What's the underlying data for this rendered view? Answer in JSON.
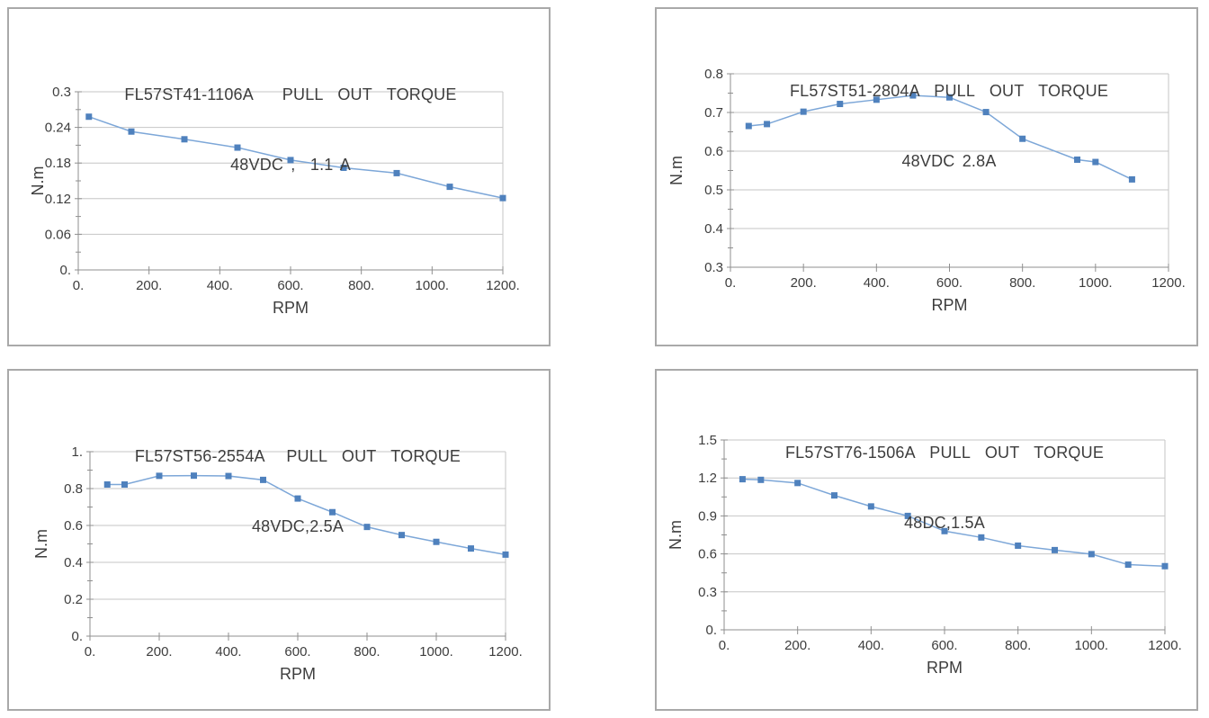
{
  "page": {
    "background": "#ffffff"
  },
  "style": {
    "panel_border_color": "#a9a9a9",
    "line_color": "#7da7d8",
    "marker_color": "#4f81bd",
    "grid_color": "#c6c6c6",
    "axis_color": "#8f8f8f",
    "text_color": "#3d3d3d"
  },
  "chart_data": [
    {
      "type": "line",
      "title": "FL57ST41-1106A    PULL  OUT  TORQUE",
      "subtitle": "48VDC ,  1.1 A",
      "xlabel": "RPM",
      "ylabel": "N.m",
      "xlim": [
        0,
        1200
      ],
      "ylim": [
        0,
        0.3
      ],
      "grid": "horizontal",
      "legend": "none",
      "x_ticks": [
        {
          "label": "0.",
          "v": 0
        },
        {
          "label": "200.",
          "v": 200
        },
        {
          "label": "400.",
          "v": 400
        },
        {
          "label": "600.",
          "v": 600
        },
        {
          "label": "800.",
          "v": 800
        },
        {
          "label": "1000.",
          "v": 1000
        },
        {
          "label": "1200.",
          "v": 1200
        }
      ],
      "y_ticks": [
        {
          "label": "0.",
          "v": 0
        },
        {
          "label": "0.06",
          "v": 0.06
        },
        {
          "label": "0.12",
          "v": 0.12
        },
        {
          "label": "0.18",
          "v": 0.18
        },
        {
          "label": "0.24",
          "v": 0.24
        },
        {
          "label": "0.3",
          "v": 0.3
        }
      ],
      "y_minor_step": 0.03,
      "series": [
        {
          "name": "pull-out torque",
          "x": [
            30,
            150,
            300,
            450,
            600,
            750,
            900,
            1050,
            1200
          ],
          "y": [
            0.258,
            0.233,
            0.22,
            0.206,
            0.185,
            0.172,
            0.163,
            0.14,
            0.121
          ]
        }
      ]
    },
    {
      "type": "line",
      "title": "FL57ST51-2804A  PULL  OUT  TORQUE",
      "subtitle": "48VDC 2.8A",
      "xlabel": "RPM",
      "ylabel": "N.m",
      "xlim": [
        0,
        1200
      ],
      "ylim": [
        0.3,
        0.8
      ],
      "grid": "horizontal",
      "legend": "none",
      "x_ticks": [
        {
          "label": "0.",
          "v": 0
        },
        {
          "label": "200.",
          "v": 200
        },
        {
          "label": "400.",
          "v": 400
        },
        {
          "label": "600.",
          "v": 600
        },
        {
          "label": "800.",
          "v": 800
        },
        {
          "label": "1000.",
          "v": 1000
        },
        {
          "label": "1200.",
          "v": 1200
        }
      ],
      "y_ticks": [
        {
          "label": "0.3",
          "v": 0.3
        },
        {
          "label": "0.4",
          "v": 0.4
        },
        {
          "label": "0.5",
          "v": 0.5
        },
        {
          "label": "0.6",
          "v": 0.6
        },
        {
          "label": "0.7",
          "v": 0.7
        },
        {
          "label": "0.8",
          "v": 0.8
        }
      ],
      "y_minor_step": 0.05,
      "series": [
        {
          "name": "pull-out torque",
          "x": [
            50,
            100,
            200,
            300,
            400,
            500,
            600,
            700,
            800,
            950,
            1000,
            1100
          ],
          "y": [
            0.665,
            0.67,
            0.702,
            0.722,
            0.733,
            0.744,
            0.739,
            0.701,
            0.632,
            0.578,
            0.572,
            0.527
          ]
        }
      ]
    },
    {
      "type": "line",
      "title": "FL57ST56-2554A   PULL  OUT  TORQUE",
      "subtitle": "48VDC,2.5A",
      "xlabel": "RPM",
      "ylabel": "N.m",
      "xlim": [
        0,
        1200
      ],
      "ylim": [
        0,
        1
      ],
      "grid": "horizontal",
      "legend": "none",
      "x_ticks": [
        {
          "label": "0.",
          "v": 0
        },
        {
          "label": "200.",
          "v": 200
        },
        {
          "label": "400.",
          "v": 400
        },
        {
          "label": "600.",
          "v": 600
        },
        {
          "label": "800.",
          "v": 800
        },
        {
          "label": "1000.",
          "v": 1000
        },
        {
          "label": "1200.",
          "v": 1200
        }
      ],
      "y_ticks": [
        {
          "label": "0.",
          "v": 0
        },
        {
          "label": "0.2",
          "v": 0.2
        },
        {
          "label": "0.4",
          "v": 0.4
        },
        {
          "label": "0.6",
          "v": 0.6
        },
        {
          "label": "0.8",
          "v": 0.8
        },
        {
          "label": "1.",
          "v": 1
        }
      ],
      "y_minor_step": 0.1,
      "series": [
        {
          "name": "pull-out torque",
          "x": [
            50,
            100,
            200,
            300,
            400,
            500,
            600,
            700,
            800,
            900,
            1000,
            1100,
            1200
          ],
          "y": [
            0.822,
            0.822,
            0.869,
            0.87,
            0.868,
            0.847,
            0.746,
            0.672,
            0.592,
            0.548,
            0.511,
            0.475,
            0.442
          ]
        }
      ]
    },
    {
      "type": "line",
      "title": "FL57ST76-1506A  PULL  OUT  TORQUE",
      "subtitle": "48DC,1.5A",
      "xlabel": "RPM",
      "ylabel": "N.m",
      "xlim": [
        0,
        1200
      ],
      "ylim": [
        0,
        1.5
      ],
      "grid": "horizontal",
      "legend": "none",
      "x_ticks": [
        {
          "label": "0.",
          "v": 0
        },
        {
          "label": "200.",
          "v": 200
        },
        {
          "label": "400.",
          "v": 400
        },
        {
          "label": "600.",
          "v": 600
        },
        {
          "label": "800.",
          "v": 800
        },
        {
          "label": "1000.",
          "v": 1000
        },
        {
          "label": "1200.",
          "v": 1200
        }
      ],
      "y_ticks": [
        {
          "label": "0.",
          "v": 0
        },
        {
          "label": "0.3",
          "v": 0.3
        },
        {
          "label": "0.6",
          "v": 0.6
        },
        {
          "label": "0.9",
          "v": 0.9
        },
        {
          "label": "1.2",
          "v": 1.2
        },
        {
          "label": "1.5",
          "v": 1.5
        }
      ],
      "y_minor_step": 0.15,
      "series": [
        {
          "name": "pull-out torque",
          "x": [
            50,
            100,
            200,
            300,
            400,
            500,
            600,
            700,
            800,
            900,
            1000,
            1100,
            1200
          ],
          "y": [
            1.19,
            1.185,
            1.16,
            1.062,
            0.975,
            0.9,
            0.78,
            0.73,
            0.665,
            0.63,
            0.598,
            0.515,
            0.503
          ]
        }
      ]
    }
  ]
}
